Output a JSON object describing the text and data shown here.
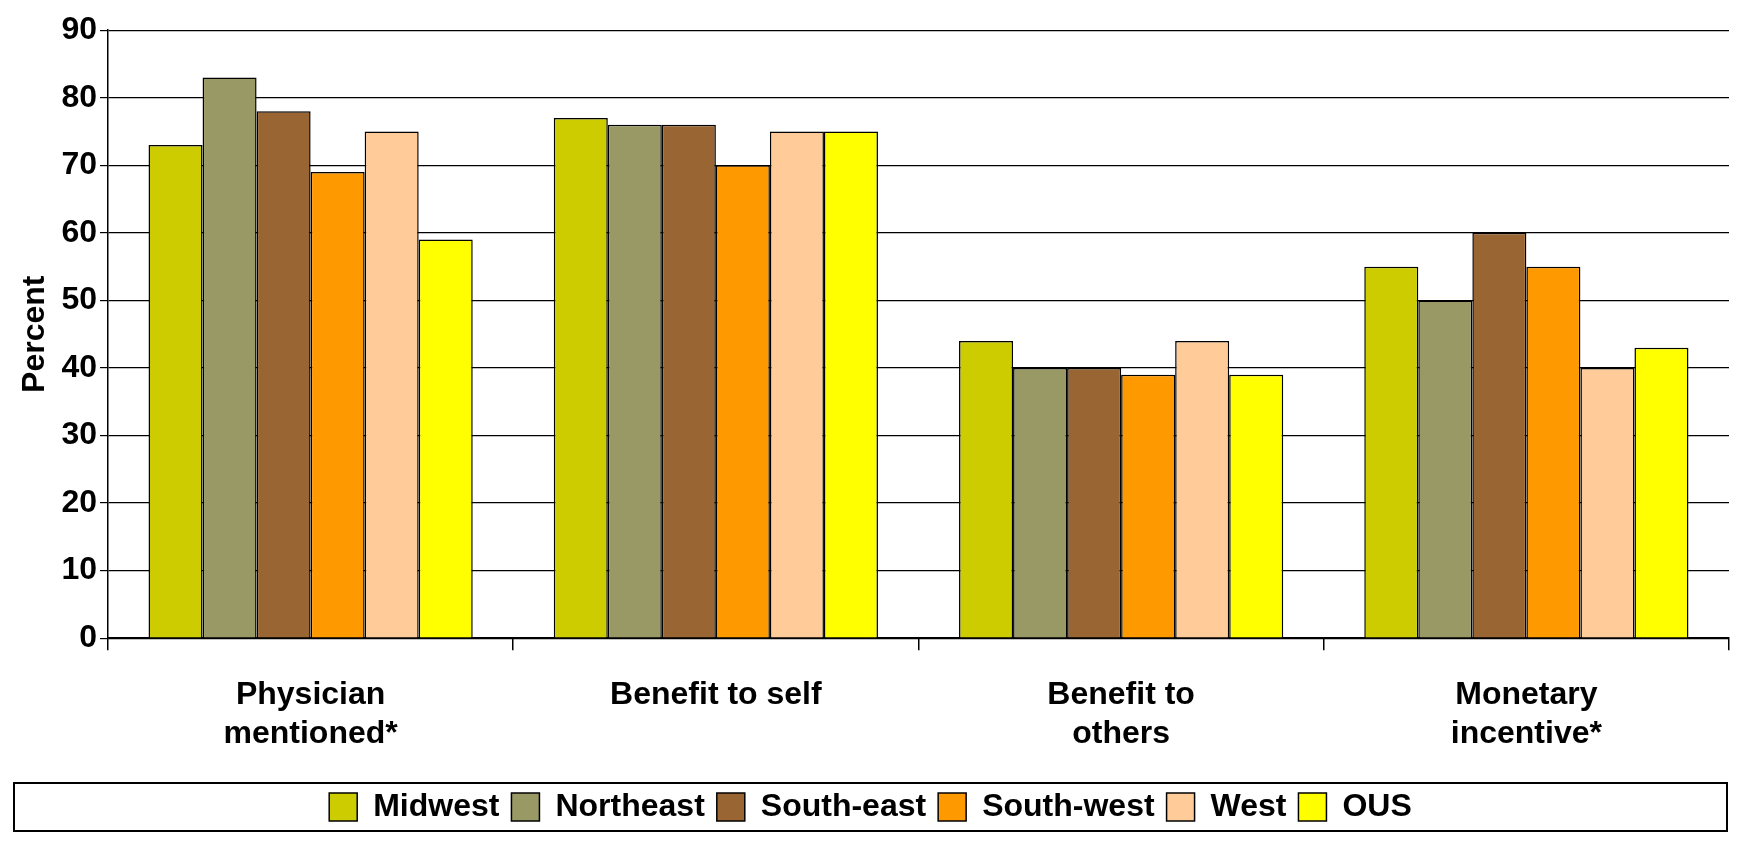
{
  "chart_data": {
    "type": "bar",
    "ylabel": "Percent",
    "categories": [
      "Physician mentioned*",
      "Benefit to self",
      "Benefit to others",
      "Monetary incentive*"
    ],
    "series": [
      {
        "name": "Midwest",
        "color": "#cccc00",
        "values": [
          73,
          77,
          44,
          55
        ]
      },
      {
        "name": "Northeast",
        "color": "#999966",
        "values": [
          83,
          76,
          40,
          50
        ]
      },
      {
        "name": "South-east",
        "color": "#996633",
        "values": [
          78,
          76,
          40,
          60
        ]
      },
      {
        "name": "South-west",
        "color": "#ff9900",
        "values": [
          69,
          70,
          39,
          55
        ]
      },
      {
        "name": "West",
        "color": "#ffcc99",
        "values": [
          75,
          75,
          44,
          40
        ]
      },
      {
        "name": "OUS",
        "color": "#ffff00",
        "values": [
          59,
          75,
          39,
          43
        ]
      }
    ],
    "ylim": [
      0,
      90
    ],
    "yticks": [
      0,
      10,
      20,
      30,
      40,
      50,
      60,
      70,
      80,
      90
    ],
    "grid": "y",
    "legend": "bottom"
  }
}
